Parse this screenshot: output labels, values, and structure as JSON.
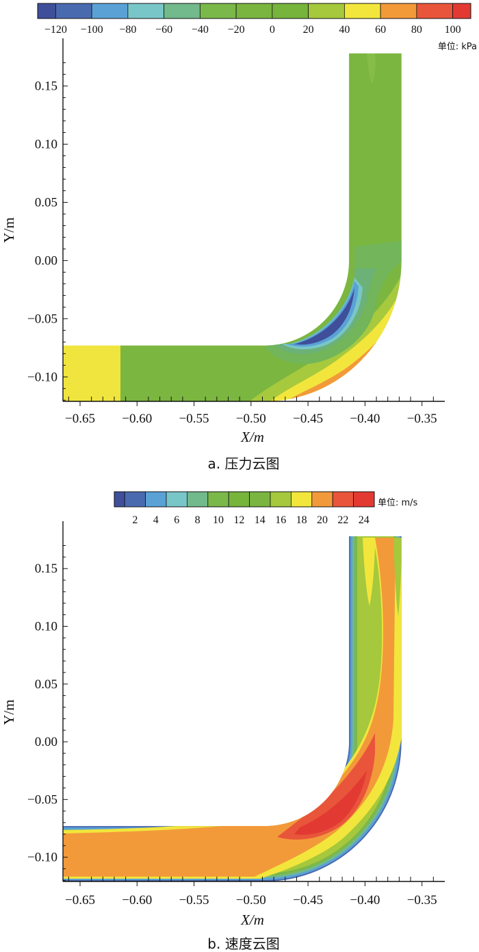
{
  "chart_data": [
    {
      "type": "heatmap",
      "subtype": "filled-contour",
      "caption": "a. 压力云图",
      "xlabel": "X/m",
      "ylabel": "Y/m",
      "xlim": [
        -0.665,
        -0.333
      ],
      "ylim": [
        -0.121,
        0.178
      ],
      "xticks": [
        -0.65,
        -0.6,
        -0.55,
        -0.5,
        -0.45,
        -0.4,
        -0.35
      ],
      "xtick_labels": [
        "−0.65",
        "−0.60",
        "−0.55",
        "−0.50",
        "−0.45",
        "−0.40",
        "−0.35"
      ],
      "yticks": [
        0.15,
        0.1,
        0.05,
        0.0,
        -0.05,
        -0.1
      ],
      "ytick_labels": [
        "0.15",
        "0.10",
        "0.05",
        "0.00",
        "−0.05",
        "−0.10"
      ],
      "colorbar": {
        "unit_label": "单位: kPa",
        "levels": [
          -130,
          -120,
          -100,
          -80,
          -60,
          -40,
          -20,
          0,
          20,
          40,
          60,
          80,
          100,
          110
        ],
        "colors": [
          "#3f4f9a",
          "#4a6ab0",
          "#5aa2d6",
          "#79c6c9",
          "#72b98c",
          "#7bb84a",
          "#7ab53f",
          "#76b43c",
          "#a5c83c",
          "#f2e63c",
          "#f29a3a",
          "#e9553a",
          "#e23a33"
        ],
        "tick_values": [
          -120,
          -100,
          -80,
          -60,
          -40,
          -20,
          0,
          20,
          40,
          60,
          80,
          100
        ],
        "tick_labels": [
          "−120",
          "−100",
          "−80",
          "−60",
          "−40",
          "−20",
          "0",
          "20",
          "40",
          "60",
          "80",
          "100"
        ]
      },
      "geometry": {
        "description": "90-degree pipe elbow, flow enters from left horizontal leg, exits upward",
        "horizontal_leg_y": [
          -0.121,
          -0.073
        ],
        "vertical_leg_x": [
          -0.414,
          -0.368
        ],
        "bend_center": [
          -0.488,
          0.0
        ]
      },
      "regions": [
        {
          "name": "inlet-high-pressure",
          "x": [
            -0.665,
            -0.613
          ],
          "y": [
            -0.121,
            -0.073
          ],
          "value": 50
        },
        {
          "name": "main-body",
          "value": 5
        },
        {
          "name": "inner-bend-low-pressure",
          "value": -120
        },
        {
          "name": "outer-bend-high-pressure",
          "value": 100
        }
      ]
    },
    {
      "type": "heatmap",
      "subtype": "filled-contour",
      "caption": "b. 速度云图",
      "xlabel": "X/m",
      "ylabel": "Y/m",
      "xlim": [
        -0.665,
        -0.333
      ],
      "ylim": [
        -0.121,
        0.178
      ],
      "xticks": [
        -0.65,
        -0.6,
        -0.55,
        -0.5,
        -0.45,
        -0.4,
        -0.35
      ],
      "xtick_labels": [
        "−0.65",
        "−0.60",
        "−0.55",
        "−0.50",
        "−0.45",
        "−0.40",
        "−0.35"
      ],
      "yticks": [
        0.15,
        0.1,
        0.05,
        0.0,
        -0.05,
        -0.1
      ],
      "ytick_labels": [
        "0.15",
        "0.10",
        "0.05",
        "0.00",
        "−0.05",
        "−0.10"
      ],
      "colorbar": {
        "unit_label": "单位: m/s",
        "levels": [
          0,
          1,
          3,
          5,
          7,
          9,
          11,
          13,
          15,
          17,
          19,
          21,
          23,
          25
        ],
        "colors": [
          "#3f4f9a",
          "#4a6ab0",
          "#5aa2d6",
          "#79c6c9",
          "#72b98c",
          "#7bb84a",
          "#76b43c",
          "#7ab53f",
          "#a5c83c",
          "#f2e63c",
          "#f29a3a",
          "#e9553a",
          "#e23a33"
        ],
        "tick_values": [
          2,
          4,
          6,
          8,
          10,
          12,
          14,
          16,
          18,
          20,
          22,
          24
        ],
        "tick_labels": [
          "2",
          "4",
          "6",
          "8",
          "10",
          "12",
          "14",
          "16",
          "18",
          "20",
          "22",
          "24"
        ]
      },
      "geometry": {
        "description": "90-degree pipe elbow, flow enters from left horizontal leg, exits upward",
        "horizontal_leg_y": [
          -0.121,
          -0.073
        ],
        "vertical_leg_x": [
          -0.414,
          -0.368
        ],
        "bend_center": [
          -0.488,
          0.0
        ]
      },
      "regions": [
        {
          "name": "core-flow",
          "value": 21
        },
        {
          "name": "wall-boundary-layer",
          "value": 2
        },
        {
          "name": "inner-bend-jet",
          "value": 24
        },
        {
          "name": "outer-bend-slow",
          "value": 17
        }
      ]
    }
  ]
}
